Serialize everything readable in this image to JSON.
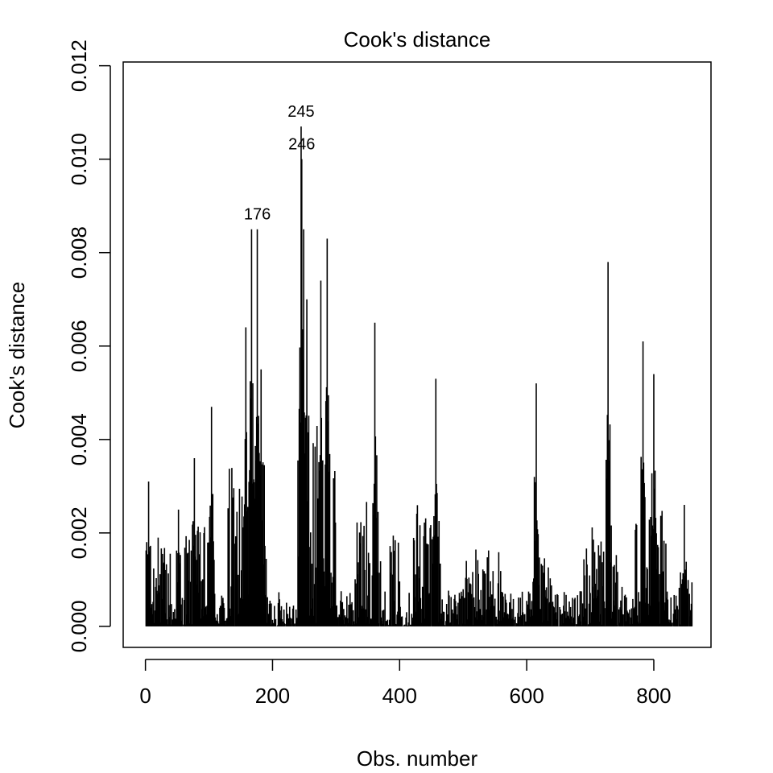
{
  "chart_data": {
    "type": "bar",
    "title": "Cook's distance",
    "xlabel": "Obs. number",
    "ylabel": "Cook's distance",
    "xlim": [
      -35,
      890
    ],
    "ylim": [
      -0.00045,
      0.01208
    ],
    "x_ticks": [
      0,
      200,
      400,
      600,
      800
    ],
    "x_tick_labels": [
      "0",
      "200",
      "400",
      "600",
      "800"
    ],
    "y_ticks": [
      0,
      0.002,
      0.004,
      0.006,
      0.008,
      0.01,
      0.012
    ],
    "y_tick_labels": [
      "0.000",
      "0.002",
      "0.004",
      "0.006",
      "0.008",
      "0.010",
      "0.012"
    ],
    "n_observations": 860,
    "grid": false,
    "color": "#000000",
    "highlighted_points": [
      {
        "x": 176,
        "y": 0.0085,
        "label": "176"
      },
      {
        "x": 245,
        "y": 0.0107,
        "label": "245"
      },
      {
        "x": 246,
        "y": 0.01,
        "label": "246"
      }
    ],
    "peaks": [
      [
        5,
        0.0031
      ],
      [
        20,
        0.0019
      ],
      [
        52,
        0.0025
      ],
      [
        77,
        0.0036
      ],
      [
        104,
        0.0047
      ],
      [
        158,
        0.0064
      ],
      [
        167,
        0.0085
      ],
      [
        176,
        0.0085
      ],
      [
        182,
        0.0055
      ],
      [
        245,
        0.0107
      ],
      [
        246,
        0.01
      ],
      [
        249,
        0.0085
      ],
      [
        254,
        0.007
      ],
      [
        276,
        0.0074
      ],
      [
        286,
        0.0083
      ],
      [
        361,
        0.0065
      ],
      [
        457,
        0.0053
      ],
      [
        615,
        0.0052
      ],
      [
        728,
        0.0078
      ],
      [
        783,
        0.0061
      ],
      [
        800,
        0.0054
      ],
      [
        848,
        0.0026
      ]
    ],
    "clusters": [
      [
        0,
        40,
        0.0018
      ],
      [
        60,
        110,
        0.0022
      ],
      [
        130,
        190,
        0.0035
      ],
      [
        240,
        300,
        0.0045
      ],
      [
        330,
        370,
        0.0028
      ],
      [
        380,
        400,
        0.002
      ],
      [
        420,
        465,
        0.003
      ],
      [
        500,
        560,
        0.0018
      ],
      [
        610,
        640,
        0.0015
      ],
      [
        690,
        750,
        0.0022
      ],
      [
        770,
        820,
        0.0025
      ],
      [
        830,
        860,
        0.0012
      ]
    ]
  }
}
